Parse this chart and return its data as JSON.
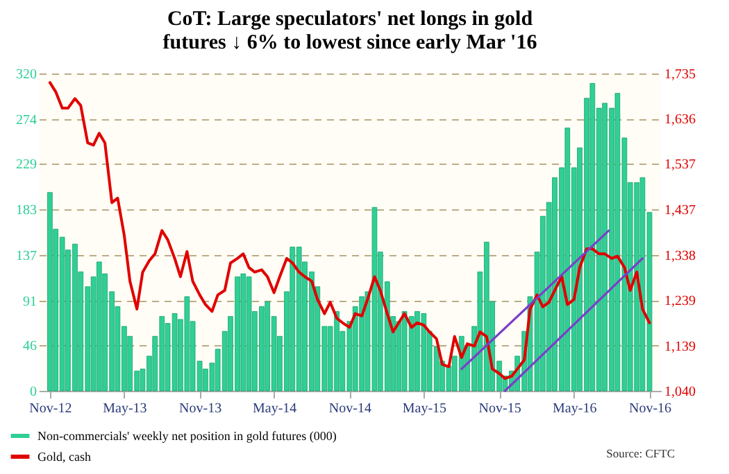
{
  "chart_data": {
    "type": "bar",
    "title": "CoT: Large speculators' net longs in gold futures ↓ 6% to lowest since early Mar '16",
    "x": [
      "2012-11-01",
      "2012-11-15",
      "2012-12-01",
      "2012-12-15",
      "2013-01-01",
      "2013-01-15",
      "2013-02-01",
      "2013-02-15",
      "2013-03-01",
      "2013-03-15",
      "2013-04-01",
      "2013-04-15",
      "2013-05-01",
      "2013-05-15",
      "2013-06-01",
      "2013-06-15",
      "2013-07-01",
      "2013-07-15",
      "2013-08-01",
      "2013-08-15",
      "2013-09-01",
      "2013-09-15",
      "2013-10-01",
      "2013-10-15",
      "2013-11-01",
      "2013-11-15",
      "2013-12-01",
      "2013-12-15",
      "2014-01-01",
      "2014-01-15",
      "2014-02-01",
      "2014-02-15",
      "2014-03-01",
      "2014-03-15",
      "2014-04-01",
      "2014-04-15",
      "2014-05-01",
      "2014-05-15",
      "2014-06-01",
      "2014-06-15",
      "2014-07-01",
      "2014-07-15",
      "2014-08-01",
      "2014-08-15",
      "2014-09-01",
      "2014-09-15",
      "2014-10-01",
      "2014-10-15",
      "2014-11-01",
      "2014-11-15",
      "2014-12-01",
      "2014-12-15",
      "2015-01-01",
      "2015-01-15",
      "2015-02-01",
      "2015-02-15",
      "2015-03-01",
      "2015-03-15",
      "2015-04-01",
      "2015-04-15",
      "2015-05-01",
      "2015-05-15",
      "2015-06-01",
      "2015-06-15",
      "2015-07-01",
      "2015-07-15",
      "2015-08-01",
      "2015-08-15",
      "2015-09-01",
      "2015-09-15",
      "2015-10-01",
      "2015-10-15",
      "2015-11-01",
      "2015-11-15",
      "2015-12-01",
      "2015-12-15",
      "2016-01-01",
      "2016-01-15",
      "2016-02-01",
      "2016-02-15",
      "2016-03-01",
      "2016-03-15",
      "2016-04-01",
      "2016-04-15",
      "2016-05-01",
      "2016-05-15",
      "2016-06-01",
      "2016-06-15",
      "2016-07-01",
      "2016-07-15",
      "2016-08-01",
      "2016-08-15",
      "2016-09-01",
      "2016-09-15",
      "2016-10-01",
      "2016-10-15",
      "2016-11-01"
    ],
    "series": [
      {
        "name": "Non-commercials' weekly net position in gold futures (000)",
        "color": "#2fcf95",
        "values": [
          200,
          163,
          155,
          142,
          148,
          120,
          105,
          115,
          130,
          118,
          100,
          85,
          65,
          55,
          20,
          22,
          35,
          55,
          75,
          68,
          78,
          72,
          95,
          70,
          30,
          22,
          28,
          42,
          60,
          75,
          115,
          118,
          115,
          80,
          85,
          90,
          75,
          55,
          100,
          145,
          145,
          130,
          120,
          105,
          65,
          65,
          80,
          60,
          70,
          85,
          95,
          100,
          185,
          140,
          110,
          75,
          70,
          80,
          75,
          80,
          78,
          60,
          45,
          30,
          25,
          35,
          55,
          45,
          65,
          120,
          150,
          90,
          30,
          15,
          20,
          35,
          60,
          95,
          140,
          176,
          190,
          215,
          225,
          265,
          225,
          245,
          295,
          310,
          285,
          290,
          285,
          300,
          255,
          210,
          210,
          215,
          180
        ]
      },
      {
        "name": "Gold, cash",
        "type": "line",
        "axis": "y2",
        "color": "#e00000",
        "values": [
          1715,
          1695,
          1659,
          1659,
          1680,
          1665,
          1583,
          1578,
          1604,
          1583,
          1452,
          1462,
          1381,
          1280,
          1219,
          1300,
          1325,
          1340,
          1391,
          1371,
          1330,
          1290,
          1345,
          1280,
          1250,
          1229,
          1214,
          1250,
          1260,
          1320,
          1330,
          1340,
          1310,
          1300,
          1305,
          1290,
          1255,
          1290,
          1330,
          1320,
          1300,
          1290,
          1280,
          1240,
          1209,
          1234,
          1199,
          1189,
          1179,
          1209,
          1204,
          1240,
          1290,
          1260,
          1209,
          1169,
          1189,
          1209,
          1179,
          1189,
          1184,
          1169,
          1154,
          1098,
          1093,
          1159,
          1113,
          1143,
          1138,
          1169,
          1159,
          1088,
          1078,
          1067,
          1072,
          1088,
          1108,
          1219,
          1250,
          1224,
          1234,
          1260,
          1290,
          1229,
          1240,
          1310,
          1351,
          1351,
          1340,
          1340,
          1330,
          1335,
          1310,
          1260,
          1300,
          1219,
          1189
        ]
      },
      {
        "type": "line",
        "axis": "y2",
        "color": "#7a3fc8",
        "x": [
          "2015-08-01",
          "2016-07-25"
        ],
        "values": [
          1088,
          1391
        ]
      },
      {
        "type": "line",
        "axis": "y2",
        "color": "#7a3fc8",
        "x": [
          "2015-11-15",
          "2016-10-15"
        ],
        "values": [
          1040,
          1330
        ]
      }
    ],
    "xlim": [
      "2012-10-22",
      "2016-11-12"
    ],
    "xticks": [
      {
        "value": "2012-11-01",
        "label": "Nov-12"
      },
      {
        "value": "2013-05-01",
        "label": "May-13"
      },
      {
        "value": "2013-11-01",
        "label": "Nov-13"
      },
      {
        "value": "2014-05-01",
        "label": "May-14"
      },
      {
        "value": "2014-11-01",
        "label": "Nov-14"
      },
      {
        "value": "2015-05-01",
        "label": "May-15"
      },
      {
        "value": "2015-11-01",
        "label": "Nov-15"
      },
      {
        "value": "2016-05-01",
        "label": "May-16"
      },
      {
        "value": "2016-11-01",
        "label": "Nov-16"
      }
    ],
    "ylim": [
      0,
      320
    ],
    "yticks": [
      0,
      46,
      91,
      137,
      183,
      229,
      274,
      320
    ],
    "y2lim": [
      1040,
      1735
    ],
    "y2ticks": [
      {
        "value": 1040,
        "label": "1,040"
      },
      {
        "value": 1139,
        "label": "1,139"
      },
      {
        "value": 1239,
        "label": "1,239"
      },
      {
        "value": 1338,
        "label": "1,338"
      },
      {
        "value": 1437,
        "label": "1,437"
      },
      {
        "value": 1537,
        "label": "1,537"
      },
      {
        "value": 1636,
        "label": "1,636"
      },
      {
        "value": 1735,
        "label": "1,735"
      }
    ],
    "grid": "y",
    "legend": "bottom left",
    "annotations": [
      "Source: CFTC"
    ]
  }
}
